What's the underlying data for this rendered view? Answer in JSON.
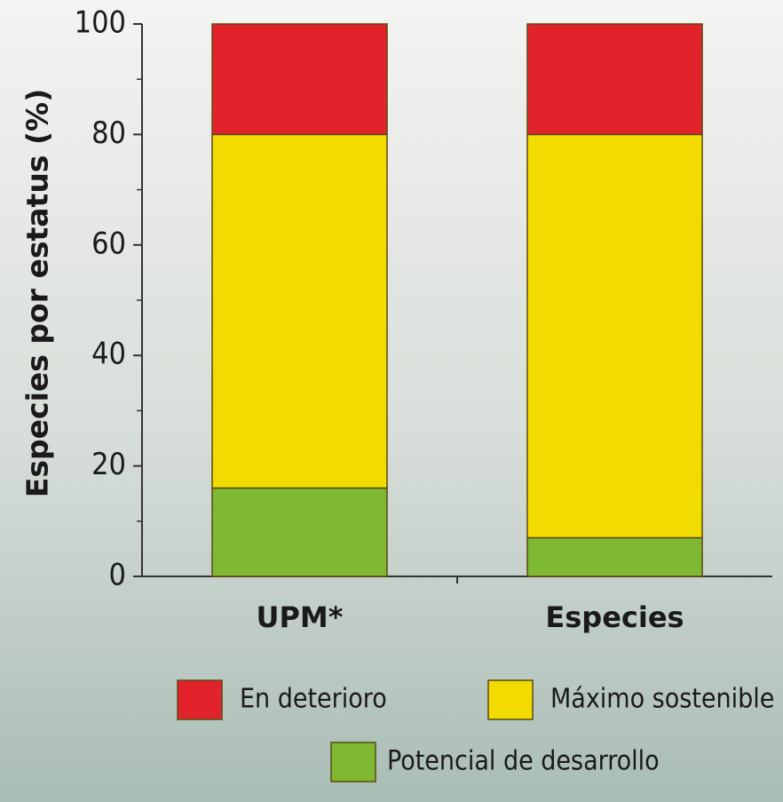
{
  "chart_data": {
    "type": "stacked_bar",
    "y_label": "Especies por estatus (%)",
    "categories": [
      "UPM*",
      "Especies"
    ],
    "series": [
      {
        "name": "Potencial de desarrollo",
        "color": "#7fb832",
        "values": [
          16,
          7
        ]
      },
      {
        "name": "Máximo sostenible",
        "color": "#f2dc00",
        "values": [
          64,
          73
        ]
      },
      {
        "name": "En deterioro",
        "color": "#e3232c",
        "values": [
          20,
          20
        ]
      }
    ],
    "ylim": [
      0,
      100
    ],
    "yticks": [
      0,
      20,
      40,
      60,
      80,
      100
    ],
    "grid": false
  }
}
